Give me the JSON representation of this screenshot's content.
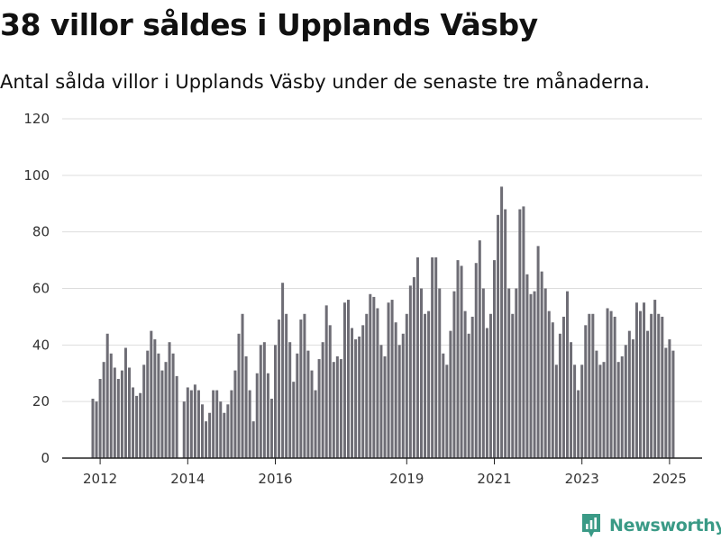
{
  "header": {
    "title": "38 villor såldes i Upplands Väsby",
    "subtitle": "Antal sålda villor i Upplands Väsby under de senaste tre månaderna."
  },
  "brand": {
    "name": "Newsworthy",
    "icon": "newsworthy-logo-icon",
    "color": "#3a9a86"
  },
  "colors": {
    "bar": "#6e6d75",
    "highlight": "#2a9d8f",
    "grid": "#dddddd",
    "axis": "#222222"
  },
  "chart_data": {
    "type": "bar",
    "title": "38 villor såldes i Upplands Väsby",
    "subtitle": "Antal sålda villor i Upplands Väsby under de senaste tre månaderna.",
    "xlabel": "",
    "ylabel": "",
    "ylim": [
      0,
      120
    ],
    "yticks": [
      "0",
      "20",
      "40",
      "60",
      "80",
      "100",
      "120"
    ],
    "xticks": [
      "2012",
      "2014",
      "2016",
      "2019",
      "2021",
      "2023",
      "2025"
    ],
    "xtick_index": [
      2,
      26,
      50,
      86,
      110,
      134,
      158
    ],
    "grid": true,
    "legend": "none",
    "highlight_index": 162,
    "highlight_label": "38",
    "values": [
      21,
      20,
      28,
      34,
      44,
      37,
      32,
      28,
      31,
      39,
      32,
      25,
      22,
      23,
      33,
      38,
      45,
      42,
      37,
      31,
      34,
      41,
      37,
      29,
      0,
      20,
      25,
      24,
      26,
      24,
      19,
      13,
      16,
      24,
      24,
      20,
      16,
      19,
      24,
      31,
      44,
      51,
      36,
      24,
      13,
      30,
      40,
      41,
      30,
      21,
      40,
      49,
      62,
      51,
      41,
      27,
      37,
      49,
      51,
      38,
      31,
      24,
      35,
      41,
      54,
      47,
      34,
      36,
      35,
      55,
      56,
      46,
      42,
      43,
      47,
      51,
      58,
      57,
      53,
      40,
      36,
      55,
      56,
      48,
      40,
      44,
      51,
      61,
      64,
      71,
      60,
      51,
      52,
      71,
      71,
      60,
      37,
      33,
      45,
      59,
      70,
      68,
      52,
      44,
      50,
      69,
      77,
      60,
      46,
      51,
      70,
      86,
      96,
      88,
      60,
      51,
      60,
      88,
      89,
      65,
      58,
      59,
      75,
      66,
      60,
      52,
      48,
      33,
      44,
      50,
      59,
      41,
      33,
      24,
      33,
      47,
      51,
      51,
      38,
      33,
      34,
      53,
      52,
      50,
      34,
      36,
      40,
      45,
      42,
      55,
      52,
      55,
      45,
      51,
      56,
      51,
      50,
      39,
      42,
      38
    ]
  }
}
